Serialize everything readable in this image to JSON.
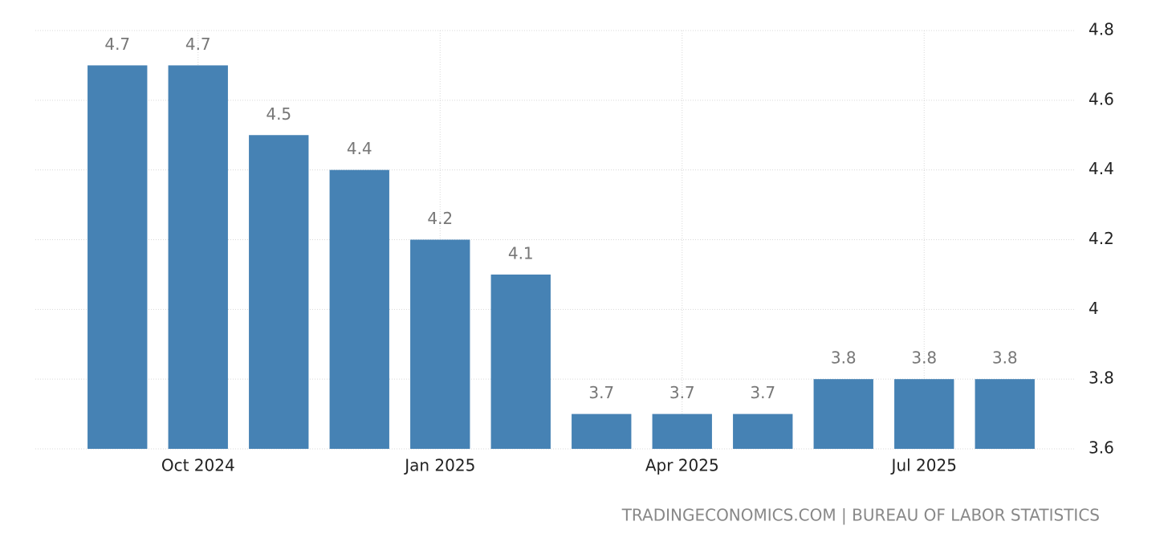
{
  "chart_data": {
    "type": "bar",
    "categories": [
      null,
      "Oct 2024",
      null,
      null,
      "Jan 2025",
      null,
      null,
      "Apr 2025",
      null,
      null,
      "Jul 2025",
      null
    ],
    "values": [
      4.7,
      4.7,
      4.5,
      4.4,
      4.2,
      4.1,
      3.7,
      3.7,
      3.7,
      3.8,
      3.8,
      3.8
    ],
    "color": "#4682b4",
    "ylim": [
      3.6,
      4.8
    ],
    "yticks": [
      3.6,
      3.8,
      4,
      4.2,
      4.4,
      4.6,
      4.8
    ],
    "grid": true,
    "source": "TRADINGECONOMICS.COM | BUREAU OF LABOR STATISTICS"
  }
}
